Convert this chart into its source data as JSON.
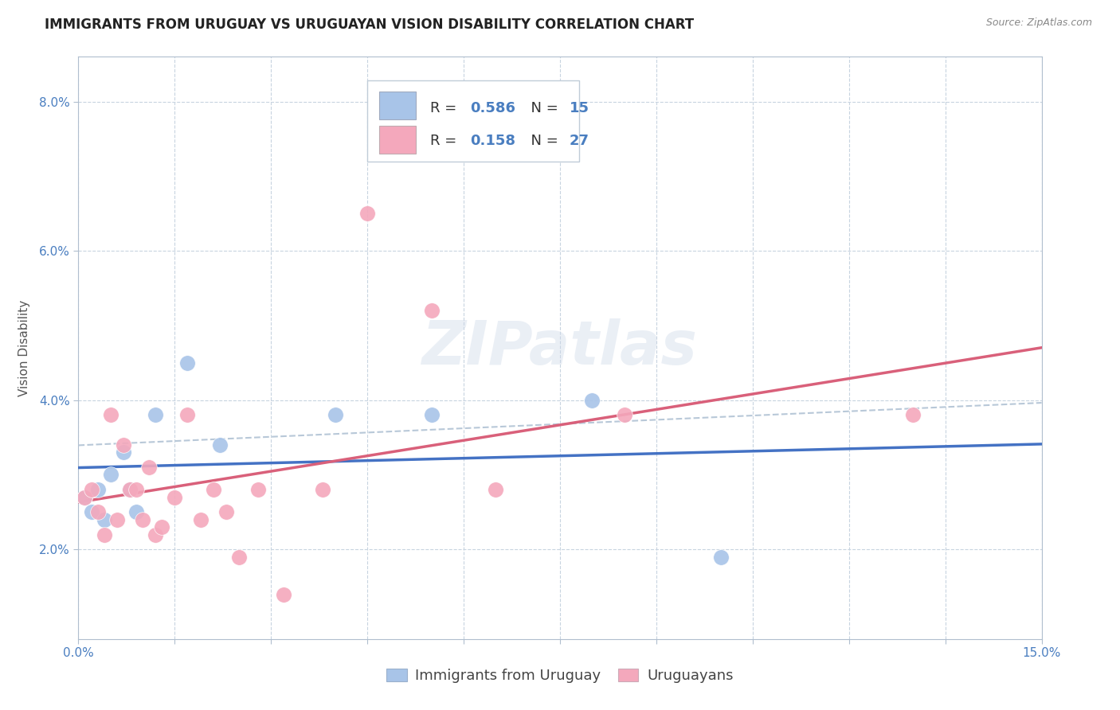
{
  "title": "IMMIGRANTS FROM URUGUAY VS URUGUAYAN VISION DISABILITY CORRELATION CHART",
  "source": "Source: ZipAtlas.com",
  "ylabel": "Vision Disability",
  "xlim": [
    0.0,
    0.15
  ],
  "ylim": [
    0.008,
    0.086
  ],
  "yticks": [
    0.02,
    0.04,
    0.06,
    0.08
  ],
  "ytick_labels": [
    "2.0%",
    "4.0%",
    "6.0%",
    "8.0%"
  ],
  "xticks": [
    0.0,
    0.015,
    0.03,
    0.045,
    0.06,
    0.075,
    0.09,
    0.105,
    0.12,
    0.135,
    0.15
  ],
  "xtick_labels": [
    "0.0%",
    "",
    "",
    "",
    "",
    "",
    "",
    "",
    "",
    "",
    "15.0%"
  ],
  "blue_label": "Immigrants from Uruguay",
  "pink_label": "Uruguayans",
  "blue_R": "0.586",
  "blue_N": "15",
  "pink_R": "0.158",
  "pink_N": "27",
  "blue_scatter_color": "#a8c4e8",
  "pink_scatter_color": "#f4a8bc",
  "blue_line_color": "#4472c4",
  "pink_line_color": "#d9607a",
  "dashed_line_color": "#b8c8d8",
  "watermark": "ZIPatlas",
  "blue_scatter_x": [
    0.001,
    0.002,
    0.003,
    0.004,
    0.005,
    0.007,
    0.008,
    0.009,
    0.012,
    0.017,
    0.022,
    0.04,
    0.055,
    0.08,
    0.1
  ],
  "blue_scatter_y": [
    0.027,
    0.025,
    0.028,
    0.024,
    0.03,
    0.033,
    0.028,
    0.025,
    0.038,
    0.045,
    0.034,
    0.038,
    0.038,
    0.04,
    0.019
  ],
  "pink_scatter_x": [
    0.001,
    0.002,
    0.003,
    0.004,
    0.005,
    0.006,
    0.007,
    0.008,
    0.009,
    0.01,
    0.011,
    0.012,
    0.013,
    0.015,
    0.017,
    0.019,
    0.021,
    0.023,
    0.025,
    0.028,
    0.032,
    0.038,
    0.045,
    0.055,
    0.065,
    0.085,
    0.13
  ],
  "pink_scatter_y": [
    0.027,
    0.028,
    0.025,
    0.022,
    0.038,
    0.024,
    0.034,
    0.028,
    0.028,
    0.024,
    0.031,
    0.022,
    0.023,
    0.027,
    0.038,
    0.024,
    0.028,
    0.025,
    0.019,
    0.028,
    0.014,
    0.028,
    0.065,
    0.052,
    0.028,
    0.038,
    0.038
  ],
  "title_fontsize": 12,
  "tick_fontsize": 11,
  "legend_fontsize": 13,
  "axis_label_fontsize": 11,
  "background_color": "#ffffff",
  "grid_color": "#c8d4e0",
  "axis_color": "#b0bece"
}
